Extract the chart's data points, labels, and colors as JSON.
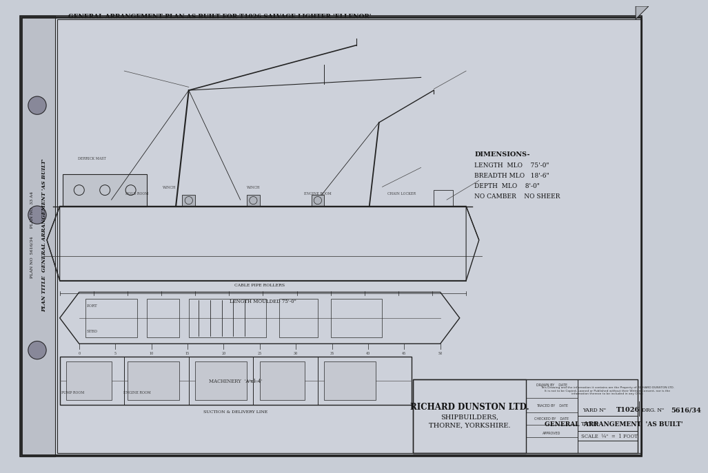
{
  "bg_color": "#c8cdd6",
  "paper_color": "#d4d8e0",
  "inner_paper_color": "#cdd1da",
  "border_color": "#333333",
  "line_color": "#222222",
  "title_block": {
    "company": "RICHARD DUNSTON LTD.",
    "sub1": "SHIPBUILDERS,",
    "sub2": "THORNE, YORKSHIRE.",
    "yard_no": "T1026",
    "drg_no": "5616/34",
    "title": "GENERAL  ARRANGEMENT  'AS BUILT'",
    "scale_label": "SCALE  ¼\"  =  1 FOOT"
  },
  "dimensions_block": {
    "header": "DIMENSIONS-",
    "length": "LENGTH  MLO    75'-0\"",
    "breadth": "BREADTH MLO   18'-6\"",
    "depth": "DEPTH  MLO    8'-0\"",
    "camber": "NO CAMBER    NO SHEER"
  },
  "side_label_lines": [
    "PLAN NO  5616/34    PLAN NO  33 A4",
    "PLAN TITLE  GENERAL ARRANGEMENT 'AS BUILT'"
  ],
  "fig_width": 10.0,
  "fig_height": 7.14
}
